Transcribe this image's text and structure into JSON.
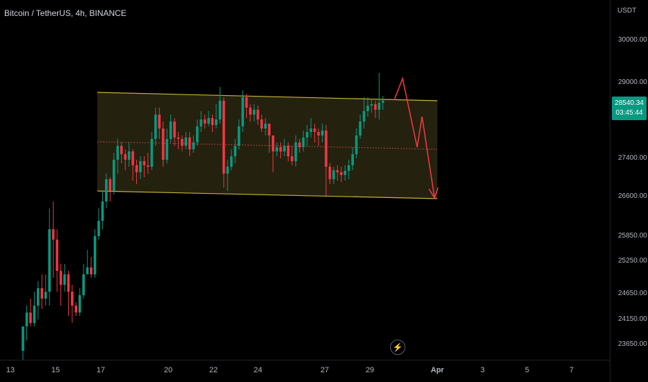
{
  "header": {
    "symbol_title": "Bitcoin / TetherUS, 4h, BINANCE"
  },
  "price_axis": {
    "currency": "USDT",
    "ticks": [
      "30000.00",
      "29000.00",
      "27400.00",
      "26600.00",
      "25850.00",
      "25250.00",
      "24650.00",
      "24150.00",
      "23650.00"
    ],
    "last_price": "28540.34",
    "countdown": "03:45:44",
    "last_price_color": "#089981"
  },
  "time_axis": {
    "ticks": [
      "13",
      "15",
      "17",
      "20",
      "22",
      "24",
      "27",
      "29",
      "Apr",
      "3",
      "5",
      "7"
    ]
  },
  "colors": {
    "up": "#089981",
    "down": "#f23645",
    "channel_line": "#c9b43a",
    "channel_fill": "#2a2812",
    "arrow": "#f23645"
  },
  "icons": {
    "replay": "lightning-bolt-icon"
  },
  "chart_data": {
    "type": "candlestick",
    "title": "Bitcoin / TetherUS, 4h, BINANCE",
    "x_labels": [
      "13",
      "15",
      "17",
      "20",
      "22",
      "24",
      "27",
      "29",
      "Apr",
      "3",
      "5",
      "7"
    ],
    "y_ticks": [
      30000,
      29000,
      27400,
      26600,
      25850,
      25250,
      24650,
      24150,
      23650
    ],
    "last_price": 28540.34,
    "annotations": [
      {
        "type": "parallel-channel",
        "upper": [
          28850,
          28520
        ],
        "lower": [
          26620,
          26520
        ],
        "fill": "#2a2812"
      },
      {
        "type": "projection-path",
        "points": [
          28540,
          28980,
          27520,
          28270,
          26520
        ]
      }
    ]
  }
}
